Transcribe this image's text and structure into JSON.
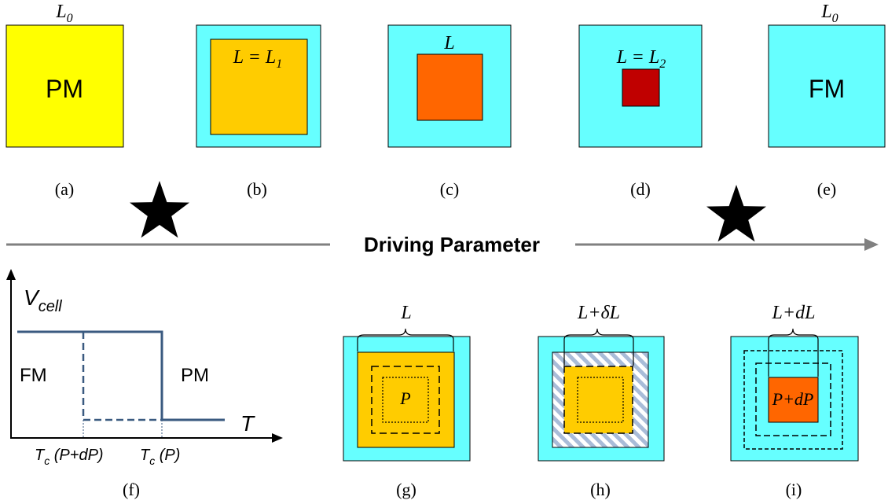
{
  "colors": {
    "pm_yellow": "#FFFF00",
    "fm_cyan": "#66FFFF",
    "nucleus_gold": "#FFCC00",
    "nucleus_orange": "#FF6600",
    "nucleus_red": "#C00000",
    "axis_gray": "#808080",
    "curve_blue": "#3A5A80",
    "hatch_blue": "#A9BCD8"
  },
  "top_row": {
    "a": {
      "caption": "(a)",
      "top_label": "L",
      "top_label_sub": "0",
      "inner": "PM"
    },
    "b": {
      "caption": "(b)",
      "inner_label": "L = L",
      "inner_label_sub": "1"
    },
    "c": {
      "caption": "(c)",
      "top_label": "L"
    },
    "d": {
      "caption": "(d)",
      "top_label": "L = L",
      "top_label_sub": "2"
    },
    "e": {
      "caption": "(e)",
      "top_label": "L",
      "top_label_sub": "0",
      "inner": "FM"
    }
  },
  "driving_axis": {
    "label": "Driving Parameter",
    "markers": [
      "star-left",
      "star-right"
    ]
  },
  "plot_f": {
    "caption": "(f)",
    "ylabel": "V",
    "ylabel_sub": "cell",
    "xlabel": "T",
    "region_left": "FM",
    "region_right": "PM",
    "tick_left_main": "T",
    "tick_left_sub": "c",
    "tick_left_arg": " (P+dP)",
    "tick_right_main": "T",
    "tick_right_sub": "c",
    "tick_right_arg": " (P)"
  },
  "bottom_row": {
    "g": {
      "caption": "(g)",
      "top_label": "L",
      "inner": "P"
    },
    "h": {
      "caption": "(h)",
      "top_label": "L+δL"
    },
    "i": {
      "caption": "(i)",
      "top_label": "L+dL",
      "inner": "P+dP"
    }
  }
}
